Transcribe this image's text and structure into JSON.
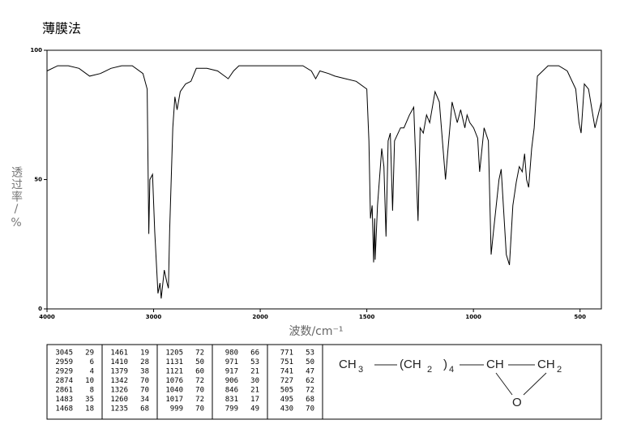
{
  "chart_data": {
    "type": "line",
    "title": "薄膜法",
    "x_label": "波数/cm⁻¹",
    "y_label": "透过率/%",
    "xlim": [
      4000,
      400
    ],
    "ylim": [
      0,
      100
    ],
    "xticks": [
      4000,
      3000,
      2000,
      1500,
      1000,
      500
    ],
    "yticks": [
      0,
      50,
      100
    ],
    "x_scale_break": 2000,
    "x_scale_factor_below_break": 2,
    "color": "#000000",
    "x": [
      4000,
      3900,
      3800,
      3700,
      3600,
      3500,
      3400,
      3300,
      3200,
      3100,
      3060,
      3045,
      3035,
      3010,
      2990,
      2959,
      2940,
      2929,
      2900,
      2874,
      2861,
      2850,
      2820,
      2800,
      2780,
      2750,
      2700,
      2650,
      2600,
      2500,
      2400,
      2300,
      2250,
      2200,
      2100,
      2000,
      1900,
      1800,
      1760,
      1740,
      1720,
      1680,
      1650,
      1600,
      1550,
      1500,
      1490,
      1483,
      1475,
      1468,
      1463,
      1461,
      1450,
      1430,
      1420,
      1410,
      1400,
      1390,
      1379,
      1370,
      1342,
      1326,
      1300,
      1280,
      1260,
      1250,
      1235,
      1220,
      1205,
      1180,
      1160,
      1131,
      1121,
      1100,
      1076,
      1060,
      1040,
      1030,
      1017,
      999,
      980,
      971,
      950,
      930,
      917,
      906,
      880,
      870,
      846,
      831,
      815,
      799,
      785,
      771,
      760,
      751,
      741,
      727,
      715,
      700,
      650,
      600,
      560,
      520,
      505,
      495,
      480,
      460,
      430,
      400
    ],
    "values": [
      92,
      94,
      94,
      93,
      90,
      91,
      93,
      94,
      94,
      91,
      85,
      29,
      50,
      52,
      30,
      6,
      10,
      4,
      15,
      10,
      8,
      30,
      70,
      82,
      77,
      84,
      87,
      88,
      93,
      93,
      92,
      89,
      92,
      94,
      94,
      94,
      94,
      94,
      92,
      89,
      92,
      91,
      90,
      89,
      88,
      85,
      65,
      35,
      40,
      18,
      35,
      19,
      40,
      62,
      55,
      28,
      65,
      68,
      38,
      65,
      70,
      70,
      75,
      78,
      34,
      70,
      68,
      75,
      72,
      84,
      80,
      50,
      60,
      80,
      72,
      77,
      70,
      75,
      72,
      70,
      66,
      53,
      70,
      65,
      21,
      30,
      50,
      54,
      21,
      17,
      40,
      49,
      55,
      53,
      60,
      50,
      47,
      62,
      70,
      90,
      94,
      94,
      92,
      85,
      72,
      68,
      87,
      85,
      70,
      80
    ],
    "peak_table": [
      [
        [
          3045,
          29
        ],
        [
          2959,
          6
        ],
        [
          2929,
          4
        ],
        [
          2874,
          10
        ],
        [
          2861,
          8
        ],
        [
          1483,
          35
        ],
        [
          1468,
          18
        ]
      ],
      [
        [
          1461,
          19
        ],
        [
          1410,
          28
        ],
        [
          1379,
          38
        ],
        [
          1342,
          70
        ],
        [
          1326,
          70
        ],
        [
          1260,
          34
        ],
        [
          1235,
          68
        ]
      ],
      [
        [
          1205,
          72
        ],
        [
          1131,
          50
        ],
        [
          1121,
          60
        ],
        [
          1076,
          72
        ],
        [
          1040,
          70
        ],
        [
          1017,
          72
        ],
        [
          999,
          70
        ]
      ],
      [
        [
          980,
          66
        ],
        [
          971,
          53
        ],
        [
          917,
          21
        ],
        [
          906,
          30
        ],
        [
          846,
          21
        ],
        [
          831,
          17
        ],
        [
          799,
          49
        ]
      ],
      [
        [
          771,
          53
        ],
        [
          751,
          50
        ],
        [
          741,
          47
        ],
        [
          727,
          62
        ],
        [
          505,
          72
        ],
        [
          495,
          68
        ],
        [
          430,
          70
        ]
      ]
    ],
    "structure": {
      "g1": "CH",
      "g1_sub": "3",
      "g2": "(CH",
      "g2_sub": "2",
      "g2_close": ")",
      "g2_count": "4",
      "g3": "CH",
      "g4": "CH",
      "g4_sub": "2",
      "oxygen": "O"
    }
  }
}
